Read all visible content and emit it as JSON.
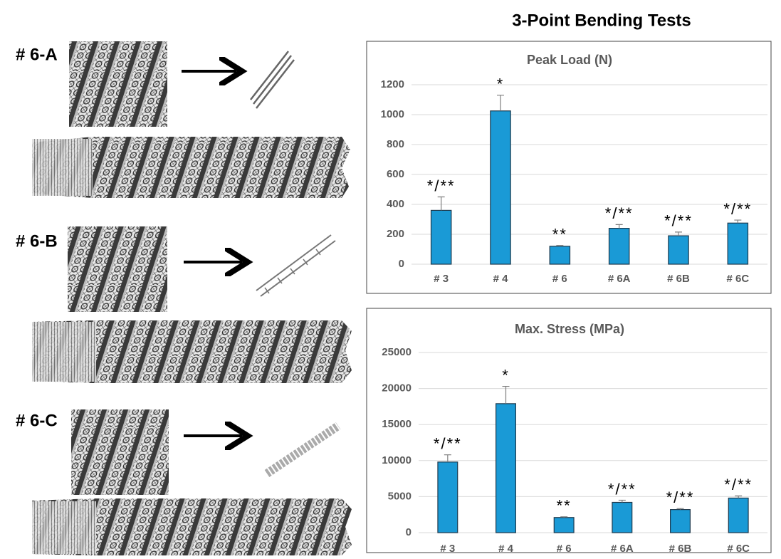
{
  "figure": {
    "title": "3-Point Bending Tests",
    "labels": [
      "# 6-A",
      "# 6-B",
      "# 6-C"
    ]
  },
  "chart_data": [
    {
      "type": "bar",
      "title": "Peak Load (N)",
      "categories": [
        "# 3",
        "# 4",
        "# 6",
        "# 6A",
        "# 6B",
        "# 6C"
      ],
      "values": [
        360,
        1025,
        120,
        240,
        190,
        275
      ],
      "errors": [
        90,
        105,
        5,
        25,
        25,
        20
      ],
      "annotations": [
        "*/**",
        "*",
        "**",
        "*/**",
        "*/**",
        "*/**"
      ],
      "color": "#1a9ad6",
      "ylim": [
        0,
        1200
      ],
      "yticks": [
        0,
        200,
        400,
        600,
        800,
        1000,
        1200
      ],
      "grid": true
    },
    {
      "type": "bar",
      "title": "Max. Stress (MPa)",
      "categories": [
        "# 3",
        "# 4",
        "# 6",
        "# 6A",
        "# 6B",
        "# 6C"
      ],
      "values": [
        9800,
        17900,
        2100,
        4200,
        3200,
        4800
      ],
      "errors": [
        1000,
        2400,
        100,
        300,
        150,
        300
      ],
      "annotations": [
        "*/**",
        "*",
        "**",
        "*/**",
        "*/**",
        "*/**"
      ],
      "color": "#1a9ad6",
      "ylim": [
        0,
        25000
      ],
      "yticks": [
        0,
        5000,
        10000,
        15000,
        20000,
        25000
      ],
      "grid": true
    }
  ]
}
